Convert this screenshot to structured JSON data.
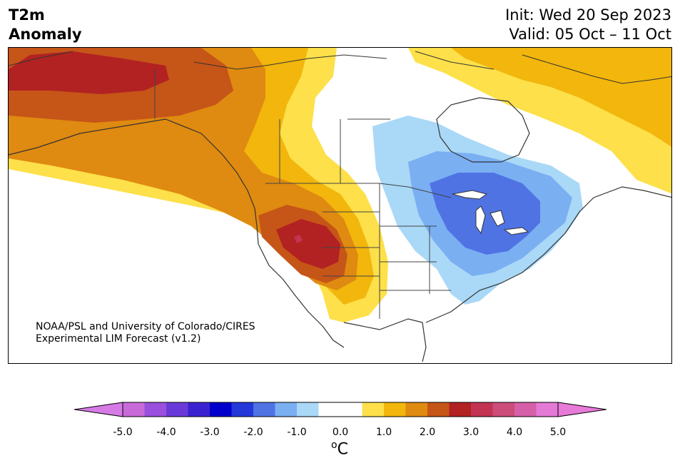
{
  "header": {
    "title_line1": "T2m",
    "title_line2": "Anomaly",
    "init_text": "Init: Wed 20 Sep 2023",
    "valid_text": "Valid: 05 Oct – 11 Oct"
  },
  "map": {
    "region": "North America",
    "credit_line1": "NOAA/PSL and University of Colorado/CIRES",
    "credit_line2": "Experimental LIM Forecast (v1.2)"
  },
  "colorbar": {
    "unit_base": "o",
    "unit_letter": "C",
    "ticks": [
      "-5.0",
      "-4.0",
      "-3.0",
      "-2.0",
      "-1.0",
      "0.0",
      "1.0",
      "2.0",
      "3.0",
      "4.0",
      "5.0"
    ],
    "bins": [
      {
        "range": "-5.0 to -4.5",
        "color": "#c86bd9"
      },
      {
        "range": "-4.5 to -4.0",
        "color": "#9a4fde"
      },
      {
        "range": "-4.0 to -3.5",
        "color": "#6a3ad8"
      },
      {
        "range": "-3.5 to -3.0",
        "color": "#3b22d1"
      },
      {
        "range": "-3.0 to -2.5",
        "color": "#0000cc"
      },
      {
        "range": "-2.5 to -2.0",
        "color": "#2438d9"
      },
      {
        "range": "-2.0 to -1.5",
        "color": "#4f73e3"
      },
      {
        "range": "-1.5 to -1.0",
        "color": "#7aaff2"
      },
      {
        "range": "-1.0 to -0.5",
        "color": "#aad8f7"
      },
      {
        "range": "-0.5 to 0.0",
        "color": "#ffffff"
      },
      {
        "range": "0.0 to 0.5",
        "color": "#ffffff"
      },
      {
        "range": "0.5 to 1.0",
        "color": "#fde04a"
      },
      {
        "range": "1.0 to 1.5",
        "color": "#f2b60c"
      },
      {
        "range": "1.5 to 2.0",
        "color": "#df8a10"
      },
      {
        "range": "2.0 to 2.5",
        "color": "#c65518"
      },
      {
        "range": "2.5 to 3.0",
        "color": "#b22222"
      },
      {
        "range": "3.0 to 3.5",
        "color": "#c23452"
      },
      {
        "range": "3.5 to 4.0",
        "color": "#cc4c7a"
      },
      {
        "range": "4.0 to 4.5",
        "color": "#d660a8"
      },
      {
        "range": "4.5 to 5.0",
        "color": "#e47ad6"
      }
    ],
    "under_color": "#d67ae6",
    "over_color": "#e87ad8"
  }
}
